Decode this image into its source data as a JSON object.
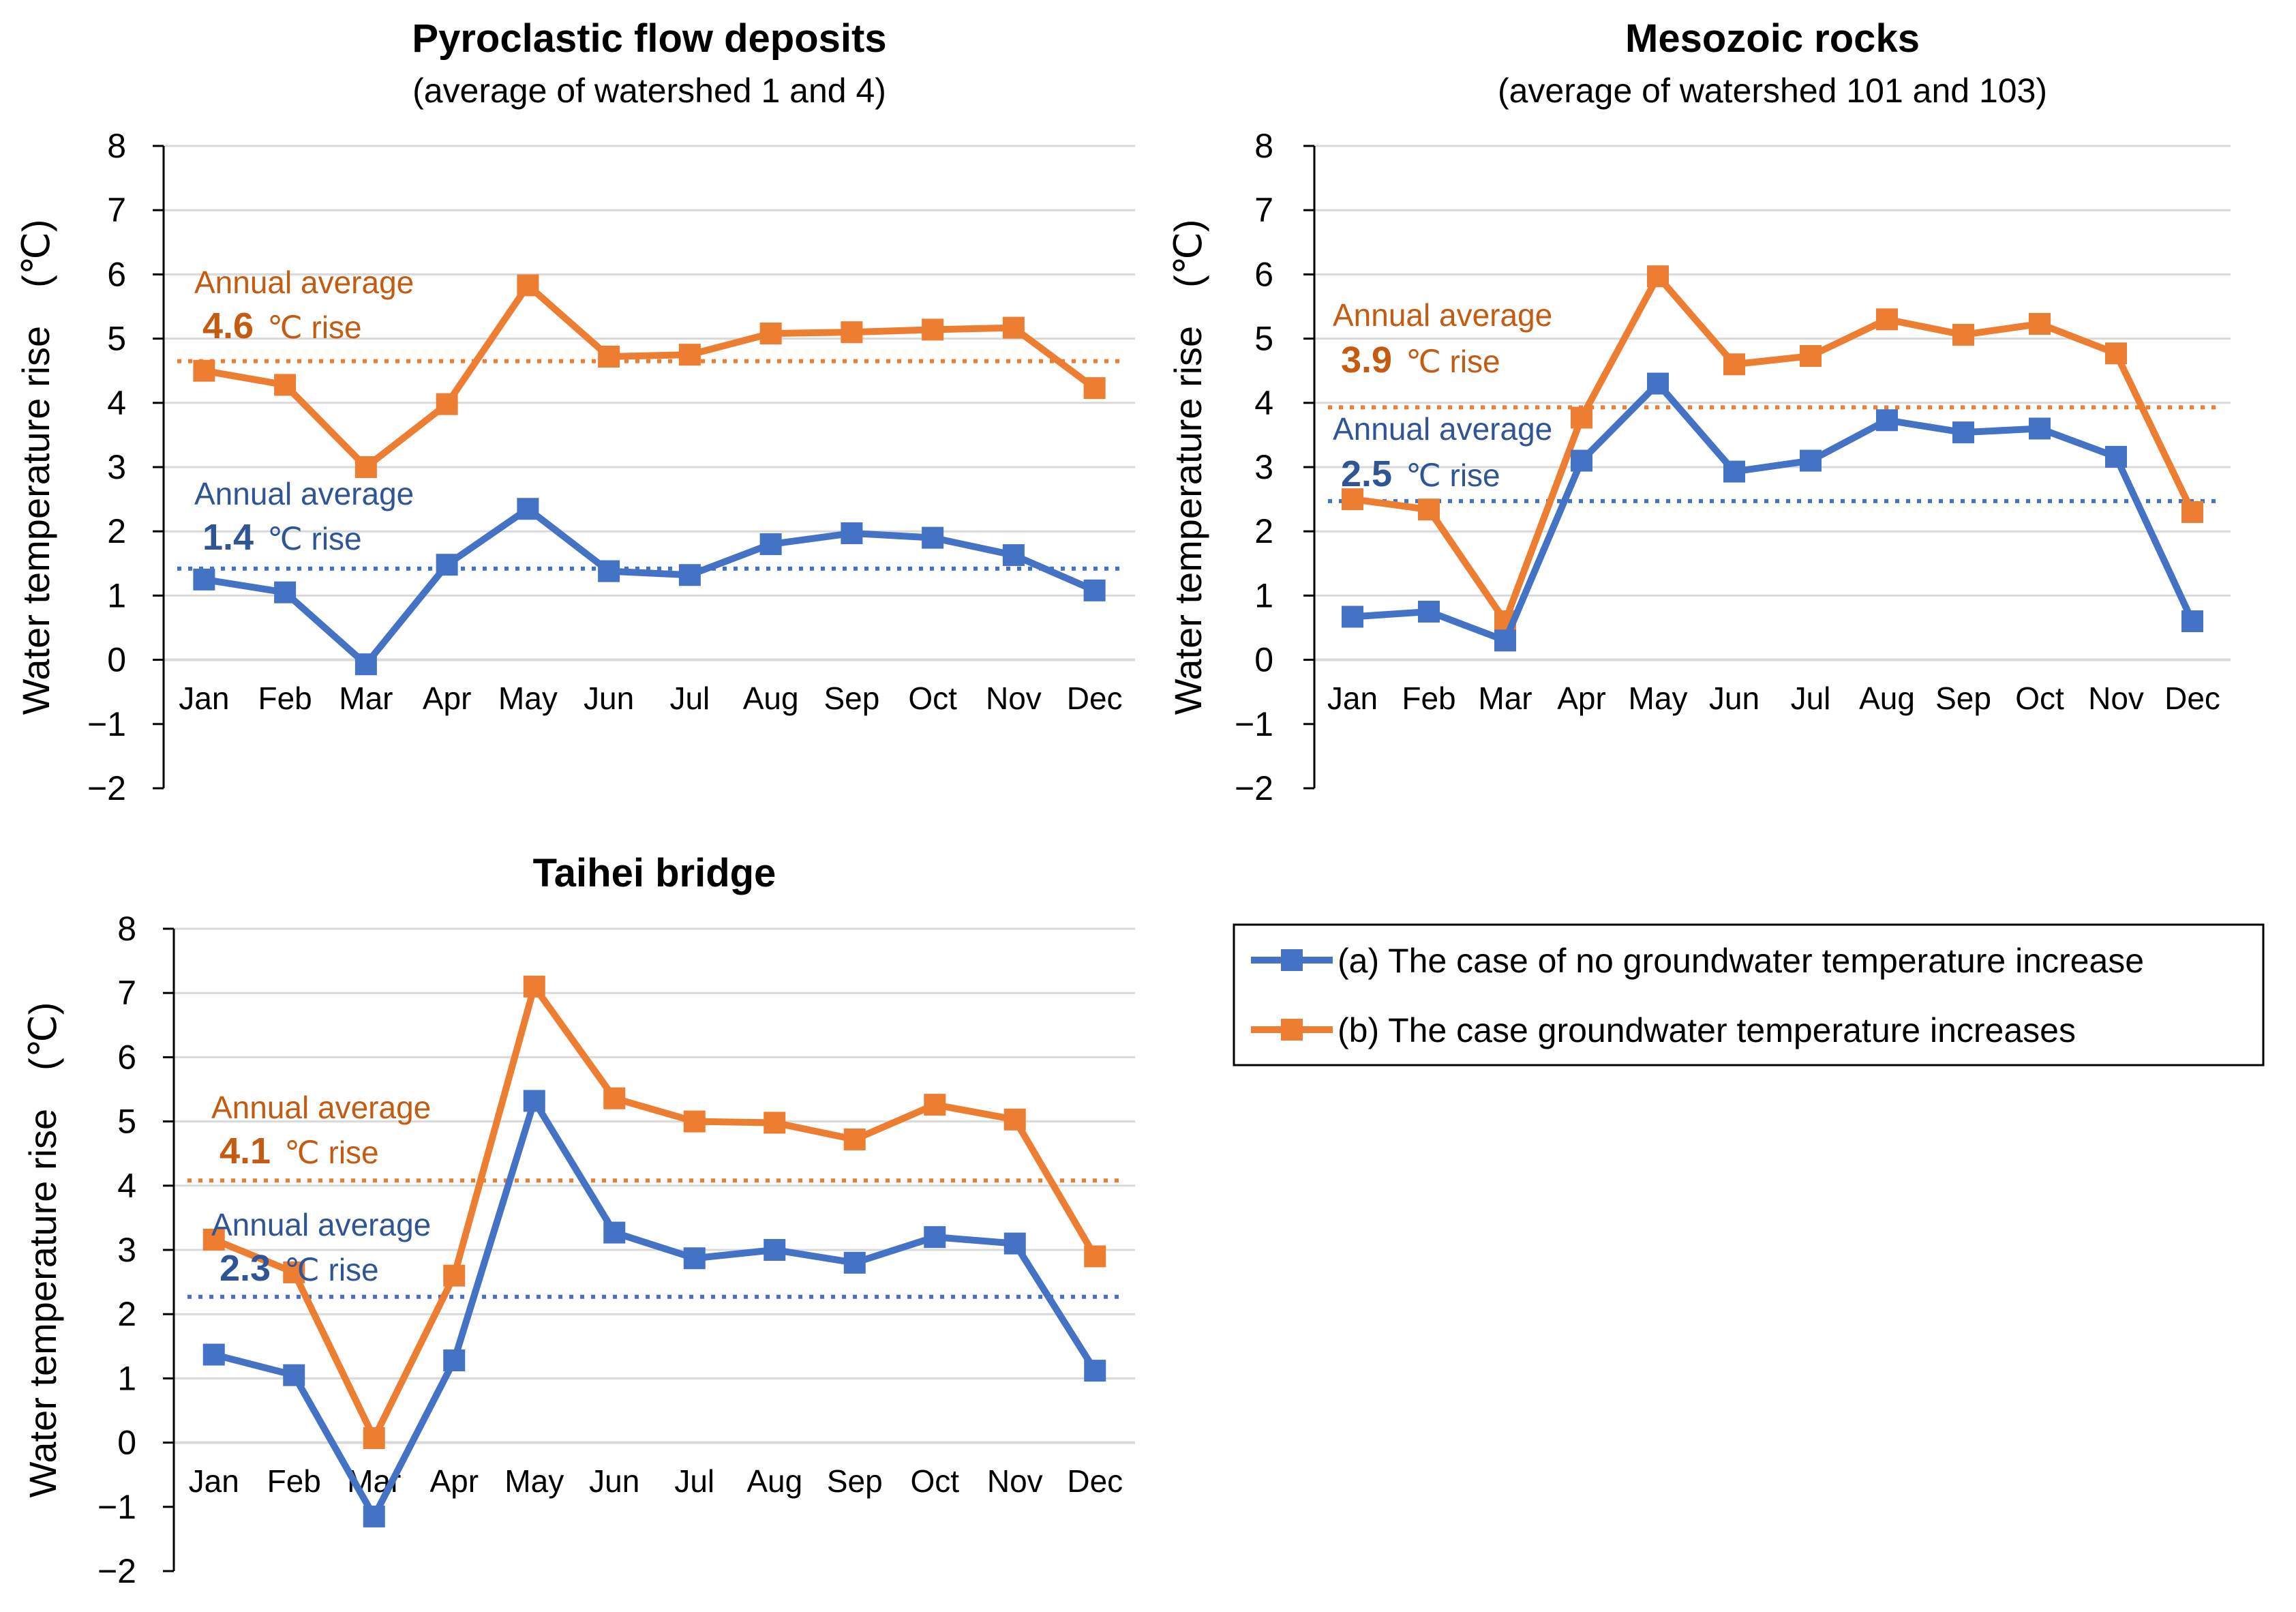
{
  "colors": {
    "series_a": "#4472C4",
    "series_b": "#ED7D31",
    "anno_a": "#2F5597",
    "anno_b": "#C55A11",
    "grid": "#D9D9D9",
    "axis": "#000000"
  },
  "legend": {
    "a": "(a) The case of no groundwater temperature increase",
    "b": "(b) The case groundwater temperature increases"
  },
  "chart_data": [
    {
      "type": "line",
      "title": "Pyroclastic flow deposits",
      "subtitle": "(average of watershed 1 and 4)",
      "ylabel": "Water temperature rise　(℃)",
      "ylim": [
        -2,
        8
      ],
      "yticks": [
        "8",
        "7",
        "6",
        "5",
        "4",
        "3",
        "2",
        "1",
        "0",
        "−1",
        "−2"
      ],
      "categories": [
        "Jan",
        "Feb",
        "Mar",
        "Apr",
        "May",
        "Jun",
        "Jul",
        "Aug",
        "Sep",
        "Oct",
        "Nov",
        "Dec"
      ],
      "series": [
        {
          "name": "(a) The case of no groundwater temperature increase",
          "values": [
            1.25,
            1.05,
            -0.07,
            1.48,
            2.35,
            1.38,
            1.32,
            1.8,
            1.97,
            1.9,
            1.63,
            1.08
          ]
        },
        {
          "name": "(b) The case groundwater temperature increases",
          "values": [
            4.5,
            4.28,
            3.0,
            3.98,
            5.83,
            4.72,
            4.75,
            5.08,
            5.1,
            5.14,
            5.17,
            4.23
          ]
        }
      ],
      "averages": [
        {
          "series": 0,
          "value": 1.42,
          "label": "Annual average",
          "number": "1.4",
          "unit": "℃ rise"
        },
        {
          "series": 1,
          "value": 4.65,
          "label": "Annual average",
          "number": "4.6",
          "unit": "℃ rise"
        }
      ]
    },
    {
      "type": "line",
      "title": "Mesozoic rocks",
      "subtitle": "(average of watershed 101 and 103)",
      "ylabel": "Water temperature rise　(℃)",
      "ylim": [
        -2,
        8
      ],
      "yticks": [
        "8",
        "7",
        "6",
        "5",
        "4",
        "3",
        "2",
        "1",
        "0",
        "−1",
        "−2"
      ],
      "categories": [
        "Jan",
        "Feb",
        "Mar",
        "Apr",
        "May",
        "Jun",
        "Jul",
        "Aug",
        "Sep",
        "Oct",
        "Nov",
        "Dec"
      ],
      "series": [
        {
          "name": "(a) The case of no groundwater temperature increase",
          "values": [
            0.67,
            0.75,
            0.3,
            3.1,
            4.3,
            2.93,
            3.1,
            3.73,
            3.54,
            3.6,
            3.16,
            0.6
          ]
        },
        {
          "name": "(b) The case groundwater temperature increases",
          "values": [
            2.5,
            2.34,
            0.6,
            3.77,
            5.97,
            4.6,
            4.73,
            5.3,
            5.06,
            5.23,
            4.77,
            2.3
          ]
        }
      ],
      "averages": [
        {
          "series": 0,
          "value": 2.47,
          "label": "Annual average",
          "number": "2.5",
          "unit": "℃ rise"
        },
        {
          "series": 1,
          "value": 3.93,
          "label": "Annual average",
          "number": "3.9",
          "unit": "℃ rise"
        }
      ]
    },
    {
      "type": "line",
      "title": "Taihei bridge",
      "subtitle": "",
      "ylabel": "Water temperature rise　(℃)",
      "ylim": [
        -2,
        8
      ],
      "yticks": [
        "8",
        "7",
        "6",
        "5",
        "4",
        "3",
        "2",
        "1",
        "0",
        "−1",
        "−2"
      ],
      "categories": [
        "Jan",
        "Feb",
        "Mar",
        "Apr",
        "May",
        "Jun",
        "Jul",
        "Aug",
        "Sep",
        "Oct",
        "Nov",
        "Dec"
      ],
      "series": [
        {
          "name": "(a) The case of no groundwater temperature increase",
          "values": [
            1.37,
            1.05,
            -1.15,
            1.28,
            5.32,
            3.27,
            2.87,
            3.0,
            2.8,
            3.2,
            3.1,
            1.12
          ]
        },
        {
          "name": "(b) The case groundwater temperature increases",
          "values": [
            3.16,
            2.65,
            0.07,
            2.6,
            7.1,
            5.36,
            5.0,
            4.98,
            4.72,
            5.26,
            5.03,
            2.9
          ]
        }
      ],
      "averages": [
        {
          "series": 0,
          "value": 2.27,
          "label": "Annual average",
          "number": "2.3",
          "unit": "℃ rise"
        },
        {
          "series": 1,
          "value": 4.08,
          "label": "Annual average",
          "number": "4.1",
          "unit": "℃ rise"
        }
      ]
    }
  ]
}
